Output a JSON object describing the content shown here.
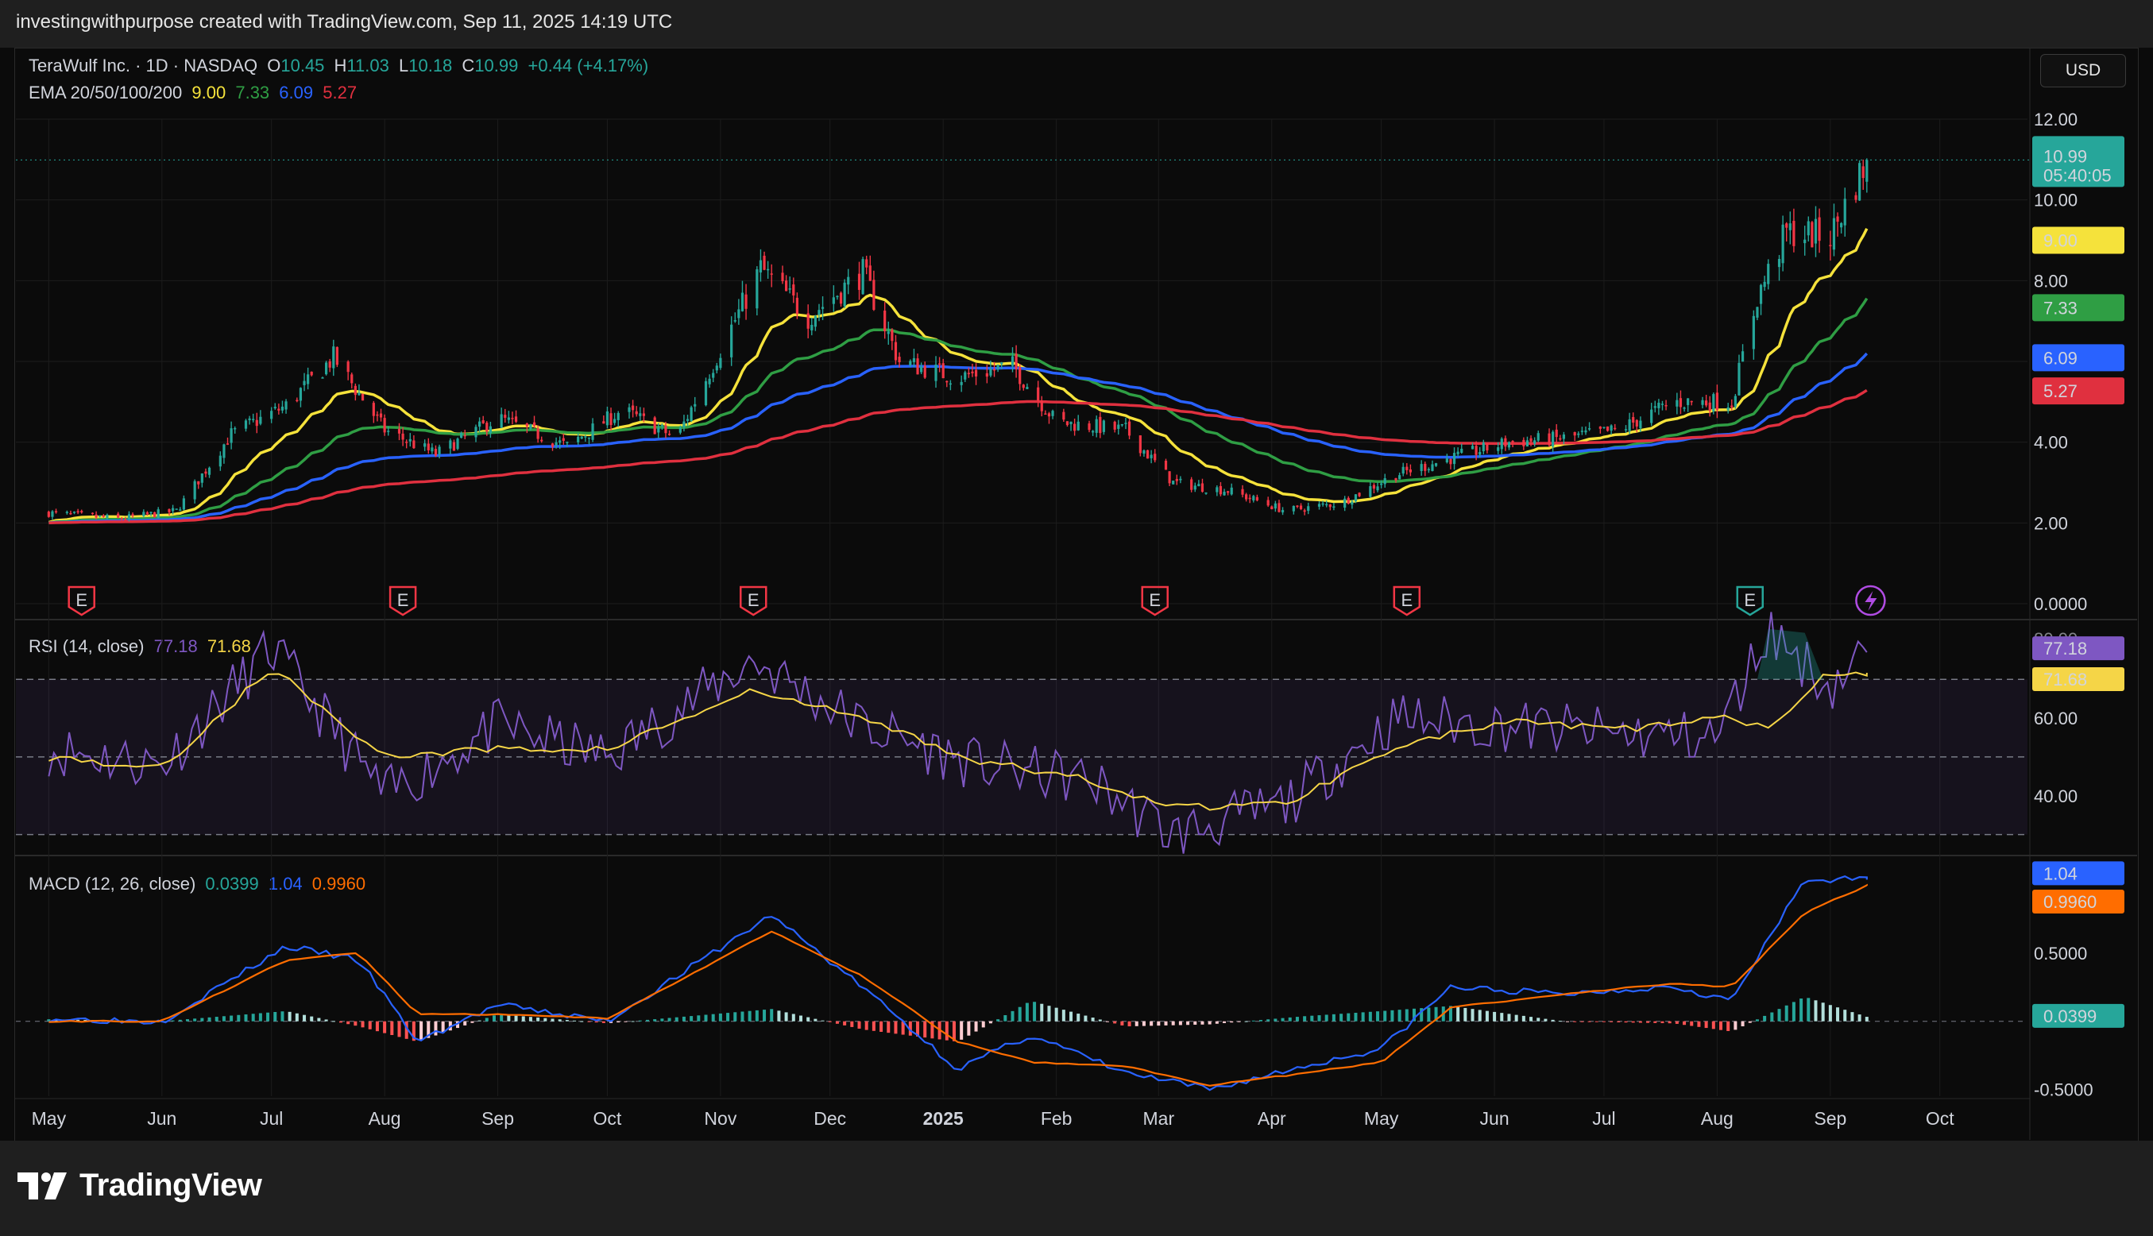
{
  "header": {
    "text": "investingwithpurpose created with TradingView.com, Sep 11, 2025 14:19 UTC"
  },
  "footer": {
    "brand": "TradingView"
  },
  "currency_button": "USD",
  "legend": {
    "symbol": "TeraWulf Inc. · 1D · NASDAQ",
    "o_label": "O",
    "o_value": "10.45",
    "h_label": "H",
    "h_value": "11.03",
    "l_label": "L",
    "l_value": "10.18",
    "c_label": "C",
    "c_value": "10.99",
    "change": "+0.44 (+4.17%)",
    "ema_label": "EMA 20/50/100/200",
    "ema_values": [
      "9.00",
      "7.33",
      "6.09",
      "5.27"
    ],
    "rsi_label": "RSI (14, close)",
    "rsi_values": [
      "77.18",
      "71.68"
    ],
    "macd_label": "MACD (12, 26, close)",
    "macd_values": [
      "0.0399",
      "1.04",
      "0.9960"
    ]
  },
  "colors": {
    "up": "#26a69a",
    "down": "#f23645",
    "ema20": "#f5e23b",
    "ema50": "#2f9e44",
    "ema100": "#2962ff",
    "ema200": "#e0303f",
    "rsi": "#7e57c2",
    "rsi_ma": "#f5d547",
    "macd": "#2962ff",
    "signal": "#ff6d00"
  },
  "chart_data": [
    {
      "type": "candlestick",
      "title": "TeraWulf Inc. · 1D · NASDAQ",
      "x_axis_labels": [
        "May",
        "Jun",
        "Jul",
        "Aug",
        "Sep",
        "Oct",
        "Nov",
        "Dec",
        "2025",
        "Feb",
        "Mar",
        "Apr",
        "May",
        "Jun",
        "Jul",
        "Aug",
        "Sep",
        "Oct"
      ],
      "y_ticks": [
        "12.00",
        "10.00",
        "8.00",
        "6.00",
        "4.00",
        "2.00",
        "0.0000"
      ],
      "ylim": [
        0,
        12
      ],
      "close_series": [
        {
          "x": "2024-05-01",
          "y": 2.25
        },
        {
          "x": "2024-05-20",
          "y": 2.1
        },
        {
          "x": "2024-06-05",
          "y": 2.3
        },
        {
          "x": "2024-06-20",
          "y": 4.2
        },
        {
          "x": "2024-07-05",
          "y": 4.9
        },
        {
          "x": "2024-07-18",
          "y": 6.1
        },
        {
          "x": "2024-08-01",
          "y": 4.3
        },
        {
          "x": "2024-08-15",
          "y": 3.7
        },
        {
          "x": "2024-09-01",
          "y": 4.6
        },
        {
          "x": "2024-09-20",
          "y": 3.9
        },
        {
          "x": "2024-10-05",
          "y": 4.8
        },
        {
          "x": "2024-10-20",
          "y": 4.1
        },
        {
          "x": "2024-11-01",
          "y": 6.3
        },
        {
          "x": "2024-11-12",
          "y": 8.3
        },
        {
          "x": "2024-11-25",
          "y": 7.1
        },
        {
          "x": "2024-12-10",
          "y": 8.2
        },
        {
          "x": "2024-12-20",
          "y": 6.0
        },
        {
          "x": "2025-01-05",
          "y": 5.6
        },
        {
          "x": "2025-01-20",
          "y": 5.9
        },
        {
          "x": "2025-02-01",
          "y": 4.5
        },
        {
          "x": "2025-02-20",
          "y": 4.3
        },
        {
          "x": "2025-03-05",
          "y": 3.0
        },
        {
          "x": "2025-03-20",
          "y": 2.8
        },
        {
          "x": "2025-04-05",
          "y": 2.3
        },
        {
          "x": "2025-04-20",
          "y": 2.5
        },
        {
          "x": "2025-05-05",
          "y": 3.2
        },
        {
          "x": "2025-05-20",
          "y": 3.6
        },
        {
          "x": "2025-06-05",
          "y": 4.0
        },
        {
          "x": "2025-06-20",
          "y": 4.1
        },
        {
          "x": "2025-07-05",
          "y": 4.3
        },
        {
          "x": "2025-07-20",
          "y": 5.0
        },
        {
          "x": "2025-08-05",
          "y": 5.0
        },
        {
          "x": "2025-08-12",
          "y": 7.6
        },
        {
          "x": "2025-08-20",
          "y": 9.2
        },
        {
          "x": "2025-09-01",
          "y": 9.1
        },
        {
          "x": "2025-09-11",
          "y": 10.99
        }
      ],
      "last_candle": {
        "open": 10.45,
        "high": 11.03,
        "low": 10.18,
        "close": 10.99
      },
      "price_label": {
        "value": "10.99",
        "countdown": "05:40:05"
      },
      "ema": [
        {
          "name": "EMA 20",
          "last": "9.00"
        },
        {
          "name": "EMA 50",
          "last": "7.33"
        },
        {
          "name": "EMA 100",
          "last": "6.09"
        },
        {
          "name": "EMA 200",
          "last": "5.27"
        }
      ],
      "earnings_markers": [
        "E",
        "E",
        "E",
        "E",
        "E",
        "E"
      ]
    },
    {
      "type": "line",
      "title": "RSI (14, close)",
      "y_ticks": [
        "60.00",
        "40.00"
      ],
      "ylim": [
        25,
        85
      ],
      "levels": [
        70,
        50,
        30
      ],
      "series": [
        {
          "name": "RSI",
          "last": "77.18",
          "values": [
            {
              "x": "2024-05-01",
              "y": 52
            },
            {
              "x": "2024-06-01",
              "y": 48
            },
            {
              "x": "2024-07-01",
              "y": 78
            },
            {
              "x": "2024-08-01",
              "y": 40
            },
            {
              "x": "2024-09-01",
              "y": 58
            },
            {
              "x": "2024-10-01",
              "y": 50
            },
            {
              "x": "2024-11-10",
              "y": 75
            },
            {
              "x": "2024-12-10",
              "y": 58
            },
            {
              "x": "2025-01-10",
              "y": 48
            },
            {
              "x": "2025-02-10",
              "y": 44
            },
            {
              "x": "2025-03-05",
              "y": 30
            },
            {
              "x": "2025-04-05",
              "y": 38
            },
            {
              "x": "2025-05-05",
              "y": 60
            },
            {
              "x": "2025-06-05",
              "y": 58
            },
            {
              "x": "2025-07-05",
              "y": 56
            },
            {
              "x": "2025-08-01",
              "y": 55
            },
            {
              "x": "2025-08-15",
              "y": 83
            },
            {
              "x": "2025-09-01",
              "y": 68
            },
            {
              "x": "2025-09-11",
              "y": 77
            }
          ]
        },
        {
          "name": "RSI-based MA",
          "last": "71.68",
          "values": [
            {
              "x": "2024-05-01",
              "y": 50
            },
            {
              "x": "2024-06-01",
              "y": 47
            },
            {
              "x": "2024-07-01",
              "y": 73
            },
            {
              "x": "2024-08-01",
              "y": 50
            },
            {
              "x": "2024-09-01",
              "y": 52
            },
            {
              "x": "2024-10-01",
              "y": 52
            },
            {
              "x": "2024-11-10",
              "y": 67
            },
            {
              "x": "2024-12-10",
              "y": 60
            },
            {
              "x": "2025-01-10",
              "y": 49
            },
            {
              "x": "2025-02-10",
              "y": 44
            },
            {
              "x": "2025-03-05",
              "y": 37
            },
            {
              "x": "2025-04-05",
              "y": 38
            },
            {
              "x": "2025-05-05",
              "y": 53
            },
            {
              "x": "2025-06-05",
              "y": 59
            },
            {
              "x": "2025-07-05",
              "y": 57
            },
            {
              "x": "2025-08-01",
              "y": 60
            },
            {
              "x": "2025-08-15",
              "y": 58
            },
            {
              "x": "2025-09-01",
              "y": 72
            },
            {
              "x": "2025-09-11",
              "y": 71.68
            }
          ]
        }
      ]
    },
    {
      "type": "line",
      "title": "MACD (12, 26, close)",
      "y_ticks": [
        "0.5000",
        "-0.5000"
      ],
      "ylim": [
        -0.55,
        1.2
      ],
      "series": [
        {
          "name": "MACD",
          "last": "1.04",
          "values": [
            {
              "x": "2024-05-01",
              "y": 0.02
            },
            {
              "x": "2024-06-01",
              "y": 0.0
            },
            {
              "x": "2024-07-05",
              "y": 0.55
            },
            {
              "x": "2024-07-25",
              "y": 0.45
            },
            {
              "x": "2024-08-10",
              "y": -0.15
            },
            {
              "x": "2024-09-01",
              "y": 0.12
            },
            {
              "x": "2024-10-01",
              "y": 0.0
            },
            {
              "x": "2024-11-15",
              "y": 0.78
            },
            {
              "x": "2024-12-10",
              "y": 0.25
            },
            {
              "x": "2025-01-05",
              "y": -0.35
            },
            {
              "x": "2025-01-25",
              "y": -0.1
            },
            {
              "x": "2025-02-20",
              "y": -0.38
            },
            {
              "x": "2025-03-15",
              "y": -0.5
            },
            {
              "x": "2025-04-10",
              "y": -0.33
            },
            {
              "x": "2025-05-01",
              "y": -0.2
            },
            {
              "x": "2025-05-20",
              "y": 0.25
            },
            {
              "x": "2025-06-20",
              "y": 0.2
            },
            {
              "x": "2025-07-20",
              "y": 0.26
            },
            {
              "x": "2025-08-05",
              "y": 0.15
            },
            {
              "x": "2025-08-25",
              "y": 1.04
            },
            {
              "x": "2025-09-11",
              "y": 1.04
            }
          ]
        },
        {
          "name": "Signal",
          "last": "0.9960",
          "values": [
            {
              "x": "2024-05-01",
              "y": 0.0
            },
            {
              "x": "2024-06-01",
              "y": 0.0
            },
            {
              "x": "2024-07-05",
              "y": 0.45
            },
            {
              "x": "2024-07-25",
              "y": 0.5
            },
            {
              "x": "2024-08-10",
              "y": 0.05
            },
            {
              "x": "2024-09-01",
              "y": 0.05
            },
            {
              "x": "2024-10-01",
              "y": 0.02
            },
            {
              "x": "2024-11-15",
              "y": 0.66
            },
            {
              "x": "2024-12-10",
              "y": 0.33
            },
            {
              "x": "2025-01-05",
              "y": -0.15
            },
            {
              "x": "2025-01-25",
              "y": -0.3
            },
            {
              "x": "2025-02-20",
              "y": -0.33
            },
            {
              "x": "2025-03-15",
              "y": -0.47
            },
            {
              "x": "2025-04-10",
              "y": -0.38
            },
            {
              "x": "2025-05-01",
              "y": -0.3
            },
            {
              "x": "2025-05-20",
              "y": 0.1
            },
            {
              "x": "2025-06-20",
              "y": 0.2
            },
            {
              "x": "2025-07-20",
              "y": 0.28
            },
            {
              "x": "2025-08-05",
              "y": 0.25
            },
            {
              "x": "2025-08-25",
              "y": 0.8
            },
            {
              "x": "2025-09-11",
              "y": 0.996
            }
          ]
        },
        {
          "name": "Histogram",
          "last": "0.0399",
          "type": "bar"
        }
      ]
    }
  ]
}
